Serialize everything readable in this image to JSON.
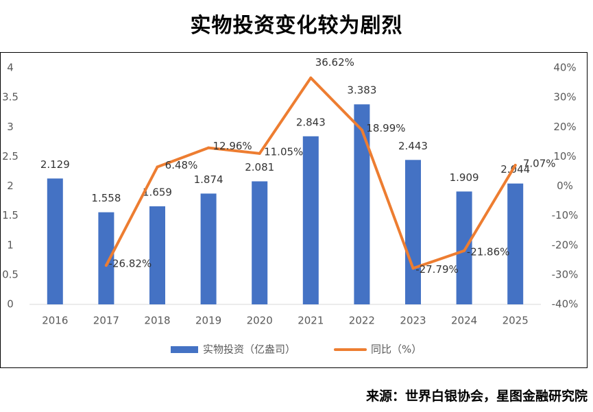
{
  "title": "实物投资变化较为剧烈",
  "source": "来源：世界白银协会，星图金融研究院",
  "colors": {
    "bar": "#4472c4",
    "line": "#ed7d31",
    "text": "#595959",
    "grid": "#d9d9d9"
  },
  "chart_data": {
    "type": "bar",
    "categories": [
      "2016",
      "2017",
      "2018",
      "2019",
      "2020",
      "2021",
      "2022",
      "2023",
      "2024",
      "2025"
    ],
    "series": [
      {
        "name": "实物投资（亿盎司）",
        "type": "bar",
        "axis": "left",
        "values": [
          2.129,
          1.558,
          1.659,
          1.874,
          2.081,
          2.843,
          3.383,
          2.443,
          1.909,
          2.044
        ],
        "labels": [
          "2.129",
          "1.558",
          "1.659",
          "1.874",
          "2.081",
          "2.843",
          "3.383",
          "2.443",
          "1.909",
          "2.044"
        ]
      },
      {
        "name": "同比（%）",
        "type": "line",
        "axis": "right",
        "values": [
          null,
          -26.82,
          6.48,
          12.96,
          11.05,
          36.62,
          18.99,
          -27.79,
          -21.86,
          7.07
        ],
        "labels": [
          "",
          "-26.82%",
          "6.48%",
          "12.96%",
          "11.05%",
          "36.62%",
          "18.99%",
          "-27.79%",
          "-21.86%",
          "7.07%"
        ]
      }
    ],
    "y_left": {
      "min": 0,
      "max": 4,
      "ticks": [
        "0",
        "0.5",
        "1",
        "1.5",
        "2",
        "2.5",
        "3",
        "3.5",
        "4"
      ]
    },
    "y_right": {
      "min": -40,
      "max": 40,
      "ticks": [
        "-40%",
        "-30%",
        "-20%",
        "-10%",
        "0%",
        "10%",
        "20%",
        "30%",
        "40%"
      ]
    },
    "legend_position": "bottom",
    "grid": false
  }
}
